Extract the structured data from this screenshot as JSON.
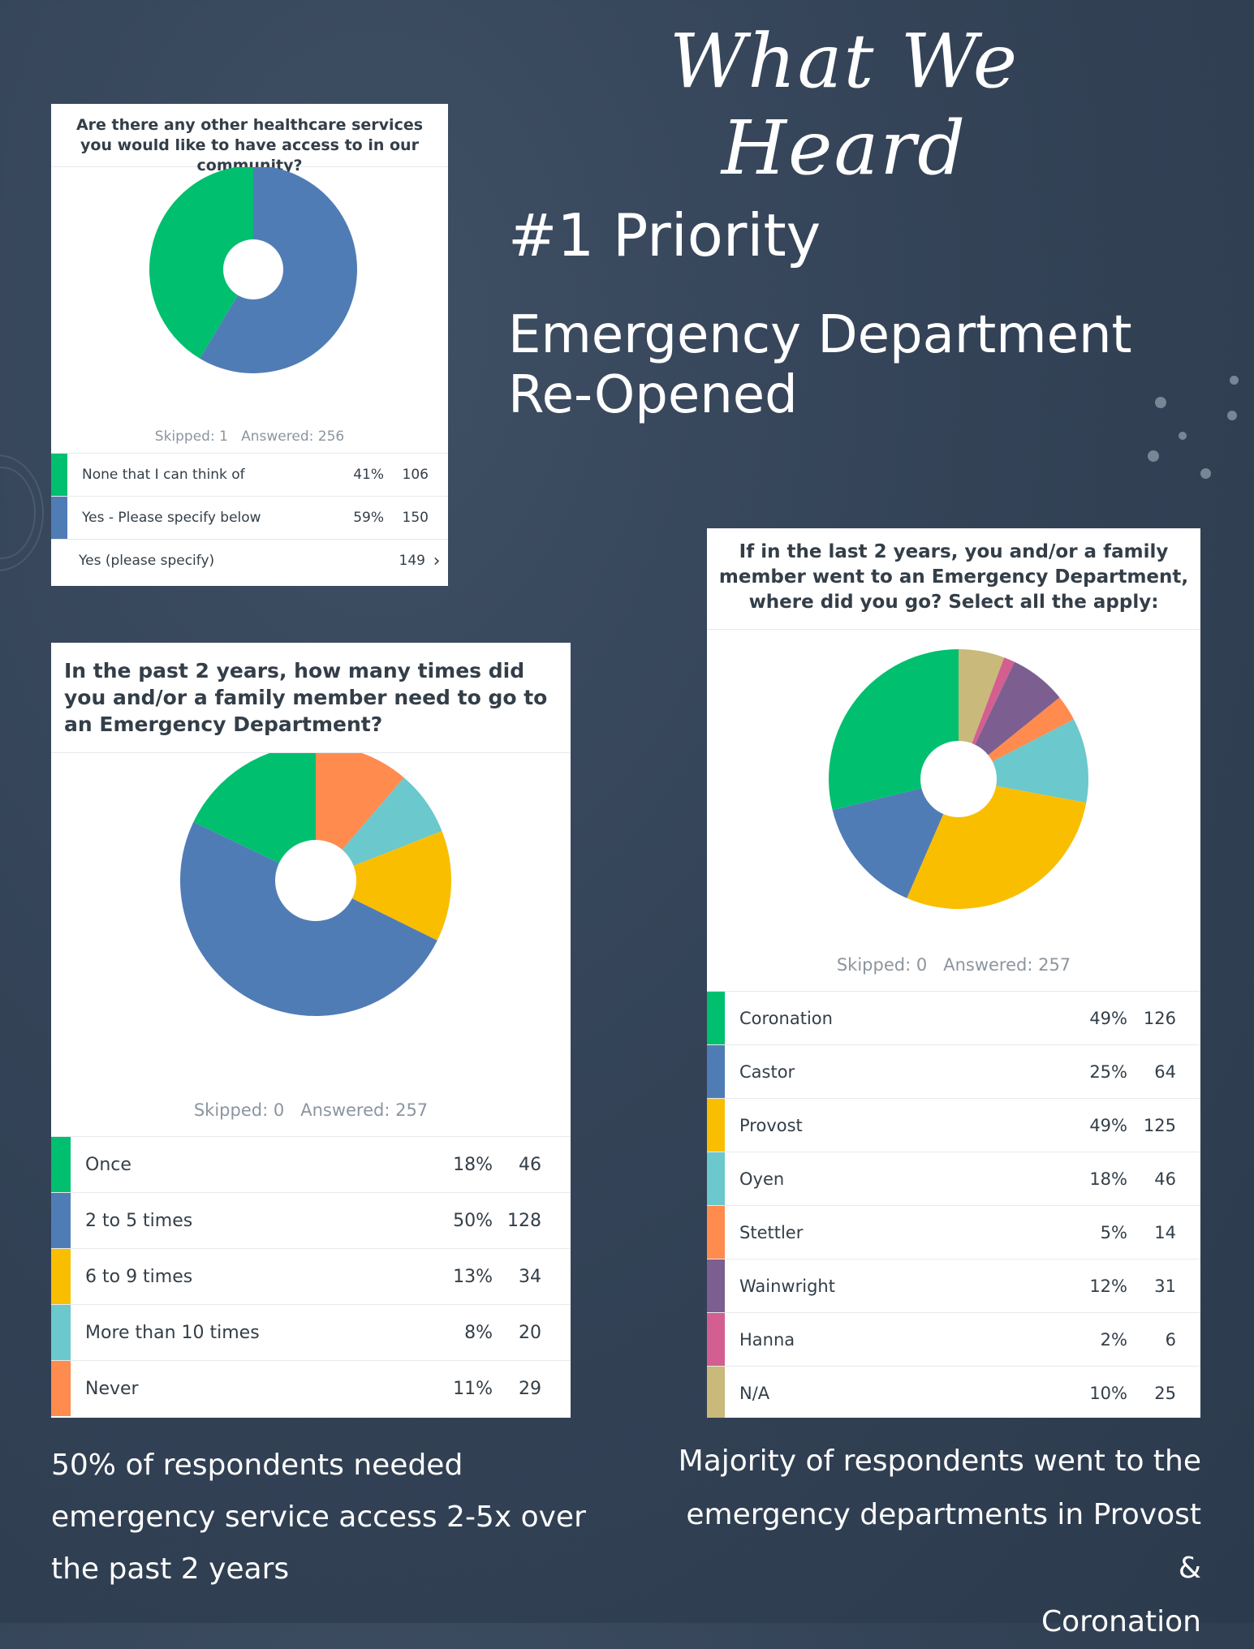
{
  "page": {
    "title": "What We Heard",
    "priority": "#1 Priority",
    "headline_line1": "Emergency Department",
    "headline_line2": "Re-Opened"
  },
  "colors": {
    "green": "#00bf6f",
    "blue": "#507cb6",
    "yellow": "#f9be00",
    "teal": "#6bc8cd",
    "orange": "#ff8b4f",
    "purple": "#7d5e90",
    "pink": "#d25f90",
    "tan": "#c9b97a",
    "background": "#344357"
  },
  "survey1": {
    "question": "Are there any other healthcare services you would like to have access to in our community?",
    "meta": "Skipped: 1   Answered: 256",
    "other_label": "Yes (please specify)",
    "other_count": "149",
    "other_icon": "chevron-right-icon"
  },
  "survey2": {
    "question": "In the past 2 years, how many times did you and/or a family member need to go to an Emergency Department?",
    "meta": "Skipped: 0   Answered: 257"
  },
  "survey3": {
    "question": "If in the last 2 years, you and/or a family member went to an Emergency Department, where did you go? Select all the apply:",
    "meta": "Skipped: 0   Answered: 257"
  },
  "captions": {
    "left": "50% of respondents needed emergency service access 2-5x over the past 2 years",
    "right_line1": "Majority of respondents went to the",
    "right_line2": "emergency departments in Provost &",
    "right_line3": "Coronation"
  },
  "chart_data": [
    {
      "type": "pie",
      "title": "Are there any other healthcare services you would like to have access to in our community?",
      "categories": [
        "None that I can think of",
        "Yes - Please specify below"
      ],
      "percents": [
        "41%",
        "59%"
      ],
      "values": [
        106,
        150
      ],
      "colors": [
        "#00bf6f",
        "#507cb6"
      ]
    },
    {
      "type": "pie",
      "title": "In the past 2 years, how many times did you and/or a family member need to go to an Emergency Department?",
      "categories": [
        "Once",
        "2 to 5 times",
        "6 to 9 times",
        "More than 10 times",
        "Never"
      ],
      "percents": [
        "18%",
        "50%",
        "13%",
        "8%",
        "11%"
      ],
      "values": [
        46,
        128,
        34,
        20,
        29
      ],
      "colors": [
        "#00bf6f",
        "#507cb6",
        "#f9be00",
        "#6bc8cd",
        "#ff8b4f"
      ]
    },
    {
      "type": "pie",
      "title": "If in the last 2 years, you and/or a family member went to an Emergency Department, where did you go? Select all the apply:",
      "categories": [
        "Coronation",
        "Castor",
        "Provost",
        "Oyen",
        "Stettler",
        "Wainwright",
        "Hanna",
        "N/A"
      ],
      "percents": [
        "49%",
        "25%",
        "49%",
        "18%",
        "5%",
        "12%",
        "2%",
        "10%"
      ],
      "values": [
        126,
        64,
        125,
        46,
        14,
        31,
        6,
        25
      ],
      "colors": [
        "#00bf6f",
        "#507cb6",
        "#f9be00",
        "#6bc8cd",
        "#ff8b4f",
        "#7d5e90",
        "#d25f90",
        "#c9b97a"
      ]
    }
  ]
}
